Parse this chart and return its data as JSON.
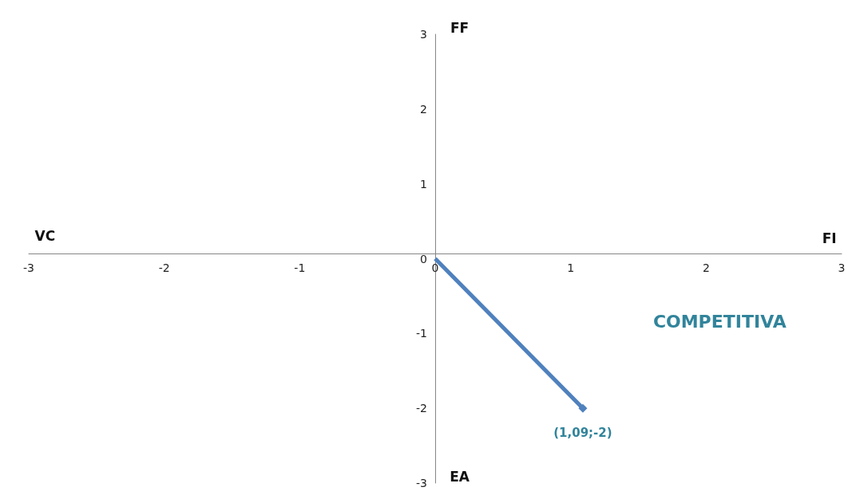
{
  "chart_data": {
    "type": "line",
    "x": [
      0,
      1.09
    ],
    "values": [
      0,
      -2
    ],
    "color": "#4f81bd",
    "marker": "diamond",
    "value_labels": [
      null,
      "(1,09;-2)"
    ],
    "xlim": [
      -3,
      3
    ],
    "ylim": [
      -3,
      3
    ],
    "xticks": [
      -3,
      -2,
      -1,
      0,
      1,
      2,
      3
    ],
    "yticks": [
      -3,
      -2,
      -1,
      0,
      1,
      2,
      3
    ],
    "annotations": [
      "FF",
      "FI",
      "VC",
      "EA",
      "COMPETITIVA"
    ]
  }
}
